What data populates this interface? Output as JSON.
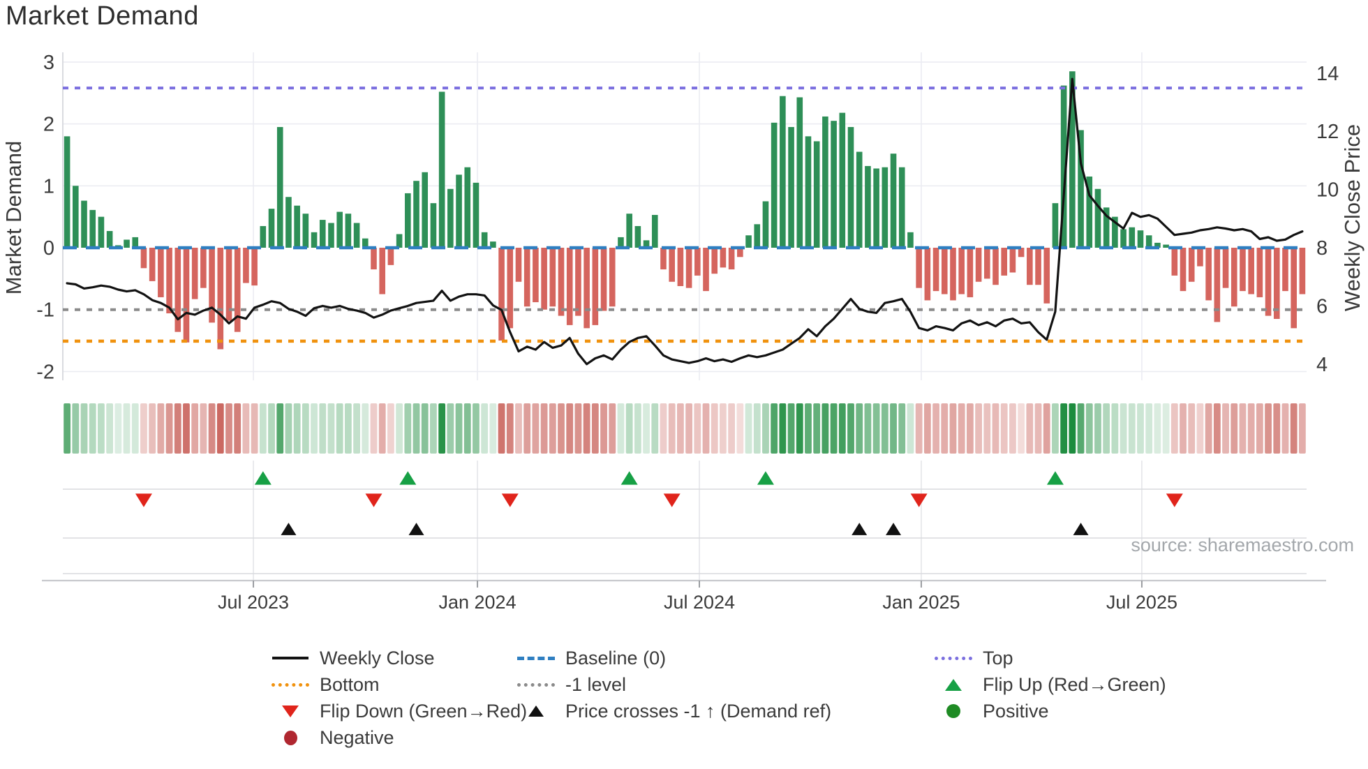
{
  "title": "Market Demand",
  "source_note": "source: sharemaestro.com",
  "axes": {
    "left_label": "Market Demand",
    "right_label": "Weekly Close Price",
    "left_ticks": [
      3,
      2,
      1,
      0,
      -1,
      -2
    ],
    "right_ticks": [
      14,
      12,
      10,
      8,
      6,
      4
    ],
    "x_tick_labels": [
      "Jul 2023",
      "Jan 2024",
      "Jul 2024",
      "Jan 2025",
      "Jul 2025"
    ]
  },
  "legend": {
    "entries": [
      {
        "label": "Weekly Close",
        "swatch": "line-black"
      },
      {
        "label": "Bottom",
        "swatch": "dot-orange"
      },
      {
        "label": "Flip Down (Green→Red)",
        "swatch": "tri-down-red"
      },
      {
        "label": "Negative",
        "swatch": "circle-darkred"
      },
      {
        "label": "Baseline (0)",
        "swatch": "dash-blue"
      },
      {
        "label": "-1 level",
        "swatch": "dot-gray"
      },
      {
        "label": "Price crosses -1 ↑ (Demand ref)",
        "swatch": "tri-up-black"
      },
      {
        "label": "Top",
        "swatch": "dot-purple"
      },
      {
        "label": "Flip Up (Red→Green)",
        "swatch": "tri-up-green"
      },
      {
        "label": "Positive",
        "swatch": "circle-green"
      }
    ]
  },
  "colors": {
    "bar_positive": "#2e8f57",
    "bar_negative": "#d5655e",
    "price_line": "#121212",
    "baseline": "#2f7fc1",
    "top_level": "#7b6fdf",
    "bottom_level": "#f0920f",
    "minus1_level": "#8a8a8a",
    "flip_up": "#17a045",
    "flip_down": "#e0241b",
    "price_cross": "#111111",
    "heat_positive": "#1d8c3e",
    "heat_negative": "#c4554d",
    "grid": "#ebecf2",
    "panel_line": "#d8dadd",
    "axis_text": "#3a3a3a"
  },
  "chart_data": {
    "type": "bar+line",
    "description": "Weekly Market Demand bars (left axis) with Weekly Close price line (right axis), weekly from late Jan 2023 to Nov 2025",
    "x_axis_tick_labels": [
      "Jul 2023",
      "Jan 2024",
      "Jul 2024",
      "Jan 2025",
      "Jul 2025"
    ],
    "x_axis_tick_week_positions": [
      21.87,
      48.17,
      74.22,
      100.27,
      126.16
    ],
    "ylim_left": [
      -2.35,
      3.16
    ],
    "ylim_right": [
      3.45,
      15.1
    ],
    "levels": {
      "top": 2.58,
      "baseline": 0,
      "minus1": -1,
      "bottom": -1.51
    },
    "demand": [
      1.8,
      1.0,
      0.76,
      0.61,
      0.5,
      0.27,
      0.04,
      0.13,
      0.17,
      -0.33,
      -0.54,
      -0.8,
      -1.06,
      -1.36,
      -1.53,
      -0.83,
      -0.65,
      -1.21,
      -1.64,
      -1.18,
      -1.36,
      -0.57,
      -0.61,
      0.35,
      0.63,
      1.95,
      0.82,
      0.68,
      0.55,
      0.25,
      0.45,
      0.4,
      0.58,
      0.55,
      0.4,
      0.15,
      -0.35,
      -0.75,
      -0.28,
      0.22,
      0.88,
      1.08,
      1.22,
      0.72,
      2.52,
      0.95,
      1.18,
      1.3,
      1.05,
      0.25,
      0.1,
      -1.5,
      -1.3,
      -0.55,
      -0.95,
      -0.88,
      -1.0,
      -0.95,
      -1.1,
      -1.25,
      -1.1,
      -1.3,
      -1.25,
      -1.02,
      -0.95,
      0.17,
      0.55,
      0.35,
      0.12,
      0.53,
      -0.35,
      -0.55,
      -0.62,
      -0.65,
      -0.45,
      -0.7,
      -0.42,
      -0.32,
      -0.35,
      -0.15,
      0.2,
      0.38,
      0.75,
      2.02,
      2.45,
      1.95,
      2.43,
      1.8,
      1.72,
      2.12,
      2.05,
      2.18,
      1.95,
      1.55,
      1.32,
      1.28,
      1.3,
      1.52,
      1.3,
      0.25,
      -0.65,
      -0.85,
      -0.7,
      -0.75,
      -0.85,
      -0.75,
      -0.8,
      -0.55,
      -0.5,
      -0.6,
      -0.45,
      -0.4,
      -0.15,
      -0.6,
      -0.6,
      -0.9,
      0.72,
      2.62,
      2.85,
      1.9,
      1.15,
      0.95,
      0.65,
      0.5,
      0.3,
      0.33,
      0.28,
      0.2,
      0.08,
      0.05,
      -0.45,
      -0.7,
      -0.55,
      -0.3,
      -0.85,
      -1.2,
      -0.65,
      -0.95,
      -0.7,
      -0.75,
      -0.8,
      -1.1,
      -1.15,
      -0.7,
      -1.3,
      -0.75
    ],
    "price": [
      6.78,
      6.74,
      6.6,
      6.64,
      6.7,
      6.66,
      6.56,
      6.5,
      6.54,
      6.4,
      6.2,
      6.1,
      5.94,
      5.54,
      5.76,
      5.7,
      5.84,
      5.94,
      5.7,
      5.4,
      5.64,
      5.56,
      5.94,
      6.04,
      6.16,
      6.1,
      5.9,
      5.8,
      5.66,
      5.92,
      6.0,
      5.94,
      6.0,
      5.9,
      5.84,
      5.76,
      5.6,
      5.7,
      5.84,
      5.92,
      6.0,
      6.1,
      6.14,
      6.18,
      6.52,
      6.18,
      6.32,
      6.4,
      6.4,
      6.36,
      6.02,
      5.86,
      5.1,
      4.44,
      4.6,
      4.5,
      4.76,
      4.56,
      4.64,
      4.9,
      4.36,
      4.0,
      4.2,
      4.3,
      4.16,
      4.5,
      4.76,
      4.9,
      4.96,
      4.64,
      4.3,
      4.16,
      4.1,
      4.04,
      4.1,
      4.2,
      4.1,
      4.16,
      4.08,
      4.2,
      4.3,
      4.24,
      4.3,
      4.4,
      4.5,
      4.7,
      4.9,
      5.2,
      4.96,
      5.3,
      5.56,
      5.9,
      6.24,
      5.9,
      5.8,
      5.76,
      6.1,
      6.16,
      6.24,
      5.8,
      5.24,
      5.16,
      5.3,
      5.24,
      5.16,
      5.4,
      5.5,
      5.34,
      5.44,
      5.3,
      5.5,
      5.56,
      5.4,
      5.44,
      5.1,
      4.84,
      5.8,
      9.8,
      13.8,
      10.9,
      9.8,
      9.44,
      9.1,
      8.88,
      8.66,
      9.2,
      9.06,
      9.12,
      9.0,
      8.72,
      8.44,
      8.48,
      8.52,
      8.6,
      8.64,
      8.7,
      8.66,
      8.6,
      8.64,
      8.56,
      8.3,
      8.36,
      8.24,
      8.28,
      8.44,
      8.56
    ],
    "flip_up_week_indices": [
      23,
      40,
      66,
      82,
      116
    ],
    "flip_down_week_indices": [
      9,
      36,
      52,
      71,
      100,
      130
    ],
    "price_cross_week_indices": [
      26,
      41,
      93,
      97,
      119
    ],
    "legend_position": "bottom",
    "grid": true
  }
}
